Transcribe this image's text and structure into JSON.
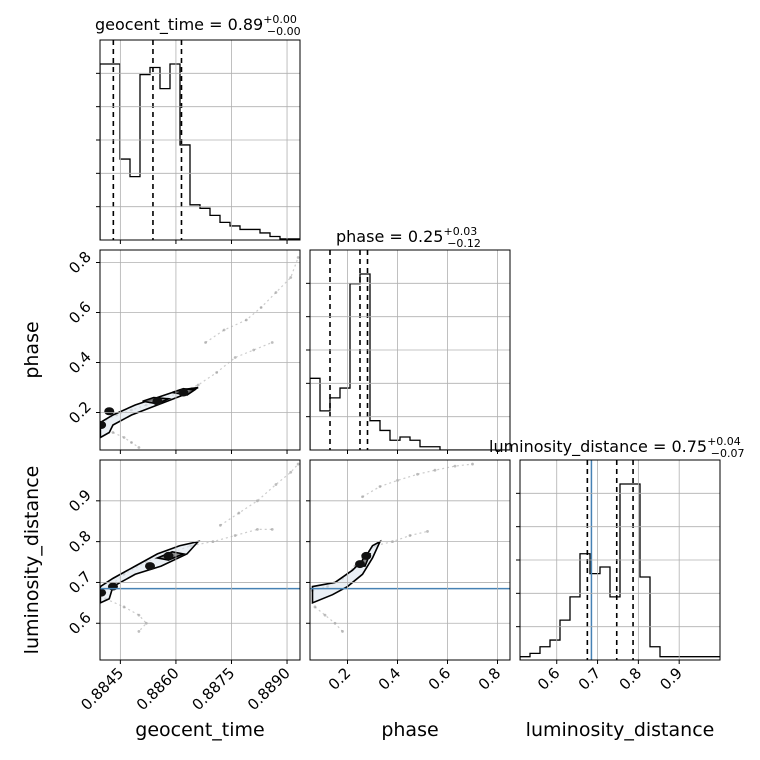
{
  "chart_data": {
    "type": "corner",
    "parameters": [
      "geocent_time",
      "phase",
      "luminosity_distance"
    ],
    "titles": [
      {
        "param": "geocent_time",
        "text": "geocent_time = 0.89",
        "sup": "+0.00",
        "sub": "−0.00"
      },
      {
        "param": "phase",
        "text": "phase = 0.25",
        "sup": "+0.03",
        "sub": "−0.12"
      },
      {
        "param": "luminosity_distance",
        "text": "luminosity_distance = 0.75",
        "sup": "+0.04",
        "sub": "−0.07"
      }
    ],
    "ranges": {
      "geocent_time": [
        0.88395,
        0.88935
      ],
      "phase": [
        0.05,
        0.85
      ],
      "luminosity_distance": [
        0.51,
        1.0
      ]
    },
    "ticks": {
      "geocent_time": {
        "values": [
          0.8845,
          0.886,
          0.8875,
          0.889
        ],
        "labels": [
          "0.8845",
          "0.8860",
          "0.8875",
          "0.8890"
        ]
      },
      "phase": {
        "values": [
          0.2,
          0.4,
          0.6,
          0.8
        ],
        "labels": [
          "0.2",
          "0.4",
          "0.6",
          "0.8"
        ]
      },
      "luminosity_distance": {
        "values": [
          0.6,
          0.7,
          0.8,
          0.9
        ],
        "labels": [
          "0.6",
          "0.7",
          "0.8",
          "0.9"
        ]
      }
    },
    "truth": {
      "luminosity_distance": 0.685
    },
    "histograms": {
      "geocent_time": {
        "edges_start": 0.88395,
        "bin_width": 0.00027,
        "counts": [
          50,
          50,
          23,
          18,
          47,
          49,
          43,
          50,
          27,
          10,
          9,
          7,
          5,
          4,
          3,
          3,
          2,
          1,
          0.3,
          0.3
        ],
        "quantiles": [
          0.88431,
          0.88538,
          0.88615
        ]
      },
      "phase": {
        "edges_start": 0.05,
        "bin_width": 0.04,
        "counts": [
          22,
          12,
          16,
          19,
          51,
          54,
          9,
          6,
          3,
          4,
          3,
          1,
          1,
          0,
          0,
          0,
          0,
          0,
          0,
          0
        ],
        "quantiles": [
          0.13,
          0.25,
          0.28
        ]
      },
      "luminosity_distance": {
        "edges_start": 0.51,
        "bin_width": 0.0245,
        "counts": [
          1,
          2,
          4,
          6,
          12,
          19,
          32,
          26,
          28,
          19,
          53,
          53,
          25,
          4,
          1,
          1,
          1,
          1,
          1,
          1
        ],
        "quantiles": [
          0.675,
          0.747,
          0.787
        ]
      }
    },
    "traces": [
      {
        "x": "geocent_time",
        "y": "phase",
        "points": [
          [
            0.88396,
            0.14
          ],
          [
            0.8841,
            0.17
          ],
          [
            0.8844,
            0.19
          ],
          [
            0.8848,
            0.21
          ],
          [
            0.8852,
            0.23
          ],
          [
            0.8856,
            0.25
          ],
          [
            0.8861,
            0.28
          ],
          [
            0.8866,
            0.31
          ],
          [
            0.8871,
            0.36
          ],
          [
            0.8876,
            0.42
          ],
          [
            0.8881,
            0.45
          ],
          [
            0.8886,
            0.48
          ]
        ]
      },
      {
        "x": "geocent_time",
        "y": "phase",
        "points": [
          [
            0.8868,
            0.48
          ],
          [
            0.8873,
            0.53
          ],
          [
            0.8879,
            0.57
          ],
          [
            0.8883,
            0.62
          ],
          [
            0.8887,
            0.68
          ],
          [
            0.8891,
            0.74
          ],
          [
            0.8893,
            0.82
          ]
        ]
      },
      {
        "x": "geocent_time",
        "y": "phase",
        "points": [
          [
            0.8843,
            0.12
          ],
          [
            0.8846,
            0.1
          ],
          [
            0.8848,
            0.08
          ],
          [
            0.885,
            0.06
          ]
        ]
      },
      {
        "x": "geocent_time",
        "y": "luminosity_distance",
        "points": [
          [
            0.88396,
            0.67
          ],
          [
            0.8842,
            0.69
          ],
          [
            0.8846,
            0.72
          ],
          [
            0.8852,
            0.75
          ],
          [
            0.8858,
            0.77
          ],
          [
            0.8864,
            0.79
          ],
          [
            0.887,
            0.8
          ],
          [
            0.8876,
            0.815
          ],
          [
            0.8882,
            0.83
          ],
          [
            0.8886,
            0.83
          ]
        ]
      },
      {
        "x": "geocent_time",
        "y": "luminosity_distance",
        "points": [
          [
            0.8872,
            0.84
          ],
          [
            0.8877,
            0.87
          ],
          [
            0.8882,
            0.9
          ],
          [
            0.8887,
            0.94
          ],
          [
            0.8891,
            0.97
          ],
          [
            0.8893,
            0.99
          ]
        ]
      },
      {
        "x": "geocent_time",
        "y": "luminosity_distance",
        "points": [
          [
            0.8841,
            0.66
          ],
          [
            0.8846,
            0.64
          ],
          [
            0.885,
            0.62
          ],
          [
            0.8852,
            0.6
          ],
          [
            0.885,
            0.58
          ]
        ]
      },
      {
        "x": "phase",
        "y": "luminosity_distance",
        "points": [
          [
            0.06,
            0.68
          ],
          [
            0.12,
            0.69
          ],
          [
            0.18,
            0.71
          ],
          [
            0.23,
            0.74
          ],
          [
            0.27,
            0.77
          ],
          [
            0.31,
            0.79
          ],
          [
            0.38,
            0.8
          ],
          [
            0.45,
            0.815
          ],
          [
            0.52,
            0.825
          ]
        ]
      },
      {
        "x": "phase",
        "y": "luminosity_distance",
        "points": [
          [
            0.26,
            0.91
          ],
          [
            0.33,
            0.935
          ],
          [
            0.4,
            0.95
          ],
          [
            0.48,
            0.965
          ],
          [
            0.55,
            0.975
          ],
          [
            0.63,
            0.985
          ],
          [
            0.7,
            0.99
          ]
        ]
      },
      {
        "x": "phase",
        "y": "luminosity_distance",
        "points": [
          [
            0.07,
            0.64
          ],
          [
            0.11,
            0.62
          ],
          [
            0.15,
            0.6
          ],
          [
            0.18,
            0.58
          ]
        ]
      }
    ],
    "contours": [
      {
        "x": "geocent_time",
        "y": "phase",
        "level": "outer",
        "points": [
          [
            0.88396,
            0.16
          ],
          [
            0.8843,
            0.19
          ],
          [
            0.8849,
            0.23
          ],
          [
            0.8855,
            0.26
          ],
          [
            0.8861,
            0.29
          ],
          [
            0.8866,
            0.3
          ],
          [
            0.8862,
            0.27
          ],
          [
            0.8855,
            0.23
          ],
          [
            0.8848,
            0.19
          ],
          [
            0.8843,
            0.15
          ],
          [
            0.8842,
            0.12
          ],
          [
            0.88396,
            0.1
          ]
        ]
      },
      {
        "x": "geocent_time",
        "y": "phase",
        "level": "inner",
        "points": [
          [
            0.8851,
            0.245
          ],
          [
            0.8854,
            0.26
          ],
          [
            0.8858,
            0.255
          ],
          [
            0.8855,
            0.235
          ]
        ]
      },
      {
        "x": "geocent_time",
        "y": "phase",
        "level": "inner",
        "points": [
          [
            0.8859,
            0.28
          ],
          [
            0.8862,
            0.295
          ],
          [
            0.8865,
            0.29
          ],
          [
            0.8863,
            0.27
          ]
        ]
      },
      {
        "x": "geocent_time",
        "y": "luminosity_distance",
        "level": "outer",
        "points": [
          [
            0.88396,
            0.69
          ],
          [
            0.8843,
            0.71
          ],
          [
            0.8849,
            0.74
          ],
          [
            0.8855,
            0.77
          ],
          [
            0.8861,
            0.79
          ],
          [
            0.8866,
            0.8
          ],
          [
            0.8863,
            0.77
          ],
          [
            0.8856,
            0.74
          ],
          [
            0.8849,
            0.72
          ],
          [
            0.8843,
            0.69
          ],
          [
            0.8842,
            0.66
          ],
          [
            0.88396,
            0.65
          ]
        ]
      },
      {
        "x": "geocent_time",
        "y": "luminosity_distance",
        "level": "inner",
        "points": [
          [
            0.8855,
            0.76
          ],
          [
            0.8859,
            0.775
          ],
          [
            0.8862,
            0.77
          ],
          [
            0.8858,
            0.755
          ]
        ]
      },
      {
        "x": "phase",
        "y": "luminosity_distance",
        "level": "outer",
        "points": [
          [
            0.06,
            0.69
          ],
          [
            0.15,
            0.7
          ],
          [
            0.22,
            0.73
          ],
          [
            0.27,
            0.76
          ],
          [
            0.3,
            0.79
          ],
          [
            0.33,
            0.8
          ],
          [
            0.3,
            0.76
          ],
          [
            0.26,
            0.72
          ],
          [
            0.2,
            0.69
          ],
          [
            0.14,
            0.67
          ],
          [
            0.06,
            0.65
          ]
        ]
      },
      {
        "x": "phase",
        "y": "luminosity_distance",
        "level": "inner",
        "points": [
          [
            0.25,
            0.74
          ],
          [
            0.27,
            0.77
          ],
          [
            0.29,
            0.77
          ],
          [
            0.27,
            0.74
          ]
        ]
      }
    ],
    "blobs": [
      {
        "x": "geocent_time",
        "y": "phase",
        "points": [
          [
            0.8855,
            0.245
          ],
          [
            0.8862,
            0.28
          ],
          [
            0.8842,
            0.205
          ],
          [
            0.88398,
            0.15
          ]
        ]
      },
      {
        "x": "geocent_time",
        "y": "luminosity_distance",
        "points": [
          [
            0.8858,
            0.765
          ],
          [
            0.88398,
            0.675
          ],
          [
            0.8843,
            0.69
          ],
          [
            0.8853,
            0.74
          ]
        ]
      },
      {
        "x": "phase",
        "y": "luminosity_distance",
        "points": [
          [
            0.275,
            0.765
          ],
          [
            0.25,
            0.745
          ]
        ]
      }
    ],
    "grid": true,
    "legend": "none"
  }
}
